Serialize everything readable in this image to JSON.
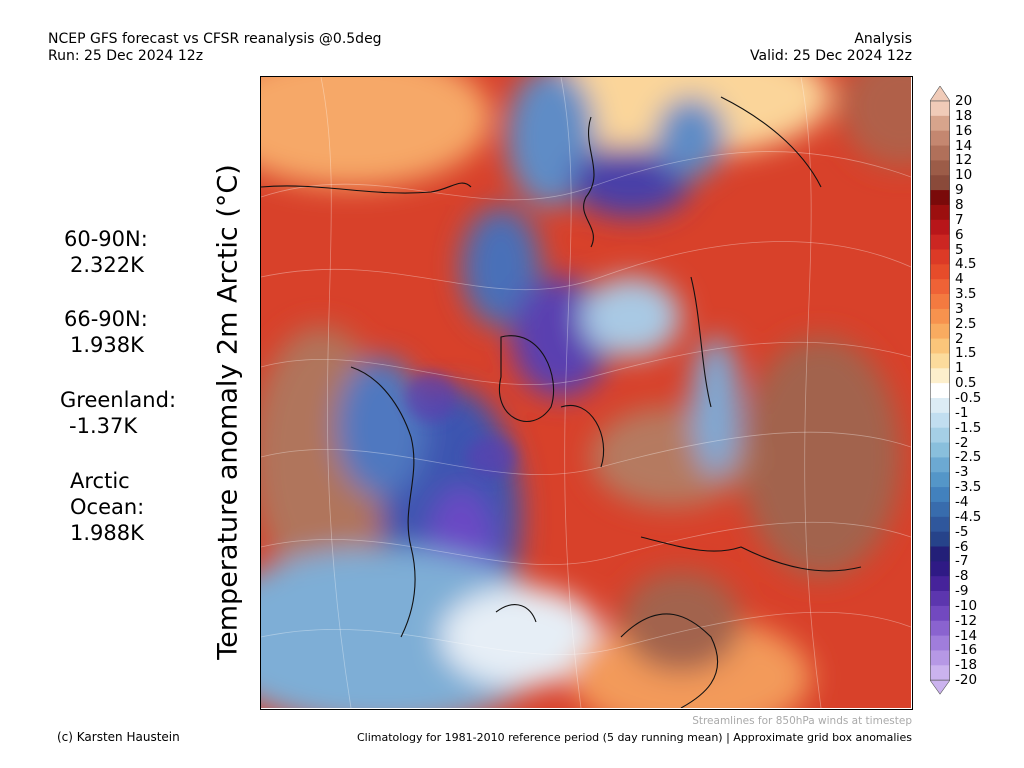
{
  "header": {
    "title_line1": "NCEP GFS forecast vs CFSR reanalysis @0.5deg",
    "title_line2": "Run: 25 Dec 2024 12z",
    "right_line1": "Analysis",
    "right_line2": "Valid: 25 Dec 2024 12z"
  },
  "vertical_title": "Temperature anomaly 2m Arctic (°C)",
  "stats": {
    "r1_label": "60-90N:",
    "r1_value": "2.322K",
    "r2_label": "66-90N:",
    "r2_value": "1.938K",
    "r3_label": "Greenland:",
    "r3_value": "-1.37K",
    "r4_label_a": "Arctic",
    "r4_label_b": "Ocean:",
    "r4_value": "1.988K"
  },
  "colorbar": {
    "ticks": [
      "20",
      "18",
      "16",
      "14",
      "12",
      "10",
      "9",
      "8",
      "7",
      "6",
      "5",
      "4.5",
      "4",
      "3.5",
      "3",
      "2.5",
      "2",
      "1.5",
      "1",
      "0.5",
      "-0.5",
      "-1",
      "-1.5",
      "-2",
      "-2.5",
      "-3",
      "-3.5",
      "-4",
      "-4.5",
      "-5",
      "-6",
      "-7",
      "-8",
      "-9",
      "-10",
      "-12",
      "-14",
      "-16",
      "-18",
      "-20"
    ],
    "colors": [
      "#f0cbb8",
      "#d7a48c",
      "#c48770",
      "#b0705a",
      "#9c5c48",
      "#8a4a3a",
      "#7a0a0a",
      "#9c0f0f",
      "#b8161a",
      "#cc2622",
      "#dc3a26",
      "#e64c2a",
      "#ef6236",
      "#f47a40",
      "#f7924e",
      "#f9ab60",
      "#fbc57a",
      "#fcdb9c",
      "#fdefcc",
      "#ffffff",
      "#dcecf5",
      "#c1def0",
      "#a5cfe6",
      "#89bfdc",
      "#6ca9d2",
      "#5496c8",
      "#4281bd",
      "#386cad",
      "#2f579c",
      "#26438a",
      "#231f78",
      "#2f1a85",
      "#46239a",
      "#5c36ae",
      "#7249c0",
      "#8a63cf",
      "#a07ddb",
      "#b698e5",
      "#cbb3ee"
    ]
  },
  "footer": {
    "streamlines": "Streamlines for 850hPa winds at timestep",
    "credit": "(c) Karsten Haustein",
    "climatology": "Climatology for 1981-2010 reference period (5 day running mean) | Approximate grid box anomalies"
  }
}
